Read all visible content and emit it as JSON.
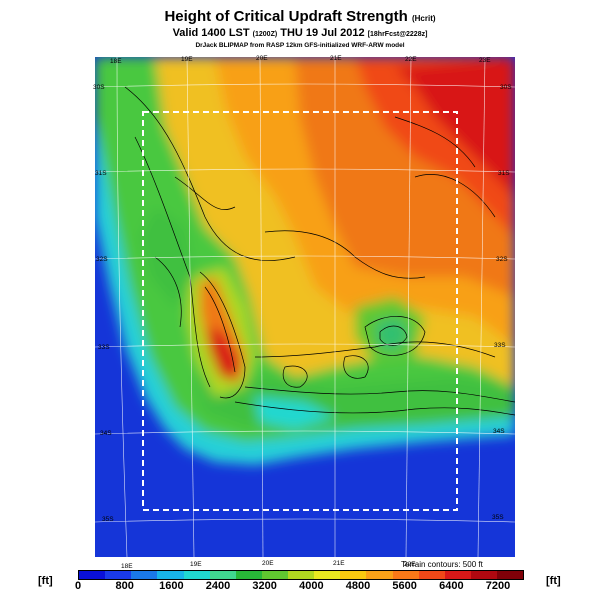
{
  "title": "Height of Critical Updraft Strength",
  "title_unit": "(Hcrit)",
  "subtitle_main": "Valid 1400 LST",
  "subtitle_code": "(1200Z)",
  "subtitle_date": "THU 19 Jul 2012",
  "subtitle_run": "[18hrFcst@2228z]",
  "source": "DrJack BLIPMAP from RASP 12km GFS-initialized WRF-ARW model",
  "lon_top": [
    "18E",
    "19E",
    "20E",
    "21E",
    "22E",
    "23E"
  ],
  "lon_bottom": [
    "18E",
    "19E",
    "20E",
    "21E",
    "22E"
  ],
  "lat_left": [
    "30S",
    "31S",
    "32S",
    "33S",
    "34S",
    "35S"
  ],
  "lat_right": [
    "30S",
    "31S",
    "32S",
    "33S",
    "34S",
    "35S"
  ],
  "terrain_note": "Terrain contours: 500 ft",
  "unit_left": "[ft]",
  "unit_right": "[ft]",
  "colorbar": {
    "labels": [
      "0",
      "800",
      "1600",
      "2400",
      "3200",
      "4000",
      "4800",
      "5600",
      "6400",
      "7200"
    ],
    "colors": [
      "#0a10d8",
      "#1a3ae8",
      "#1a78e8",
      "#18b4e8",
      "#20d8d0",
      "#40d890",
      "#28b838",
      "#60c830",
      "#b0d820",
      "#e8e820",
      "#f8c810",
      "#f8a018",
      "#f87818",
      "#f04818",
      "#d81818",
      "#b00810",
      "#800008"
    ]
  }
}
